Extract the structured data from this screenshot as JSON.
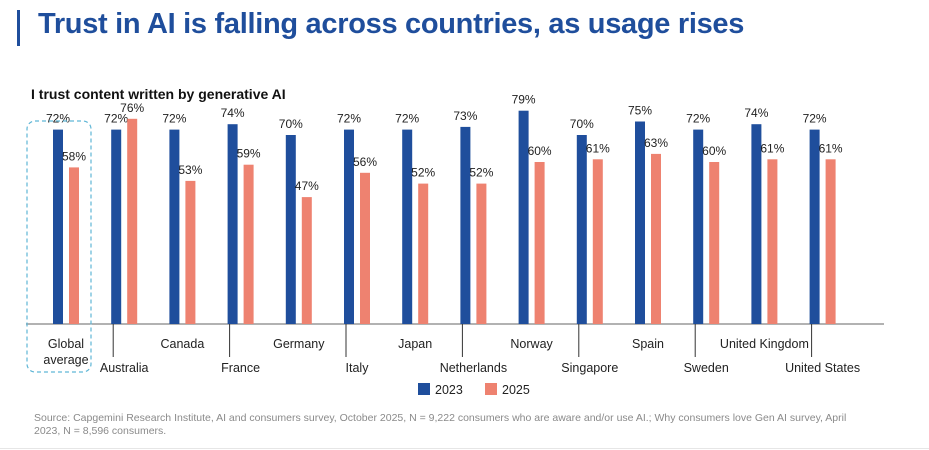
{
  "header": {
    "title": "Trust in AI is falling across countries, as usage rises"
  },
  "chart_data": {
    "type": "bar",
    "subtitle": "I trust content written by generative AI",
    "categories": [
      "Global average",
      "Australia",
      "Canada",
      "France",
      "Germany",
      "Italy",
      "Japan",
      "Netherlands",
      "Norway",
      "Singapore",
      "Spain",
      "Sweden",
      "United Kingdom",
      "United States"
    ],
    "category_label_lines": [
      [
        "Global",
        "average"
      ],
      [
        "Australia"
      ],
      [
        "Canada"
      ],
      [
        "France"
      ],
      [
        "Germany"
      ],
      [
        "Italy"
      ],
      [
        "Japan"
      ],
      [
        "Netherlands"
      ],
      [
        "Norway"
      ],
      [
        "Singapore"
      ],
      [
        "Spain"
      ],
      [
        "Sweden"
      ],
      [
        "United Kingdom"
      ],
      [
        "United States"
      ]
    ],
    "series": [
      {
        "name": "2023",
        "color": "#1f4e9c",
        "values": [
          72,
          72,
          72,
          74,
          70,
          72,
          72,
          73,
          79,
          70,
          75,
          72,
          74,
          72
        ]
      },
      {
        "name": "2025",
        "color": "#ee8270",
        "values": [
          58,
          76,
          53,
          59,
          47,
          56,
          52,
          52,
          60,
          61,
          63,
          60,
          61,
          61
        ]
      }
    ],
    "value_suffix": "%",
    "highlighted_category": "Global average",
    "ylim": [
      0,
      100
    ],
    "grid": false,
    "legend_position": "bottom-center"
  },
  "footer": {
    "source": "Source: Capgemini Research Institute, AI and consumers survey, October 2025, N = 9,222 consumers who are aware and/or use AI.; Why consumers love Gen AI survey, April 2023, N = 8,596 consumers."
  }
}
